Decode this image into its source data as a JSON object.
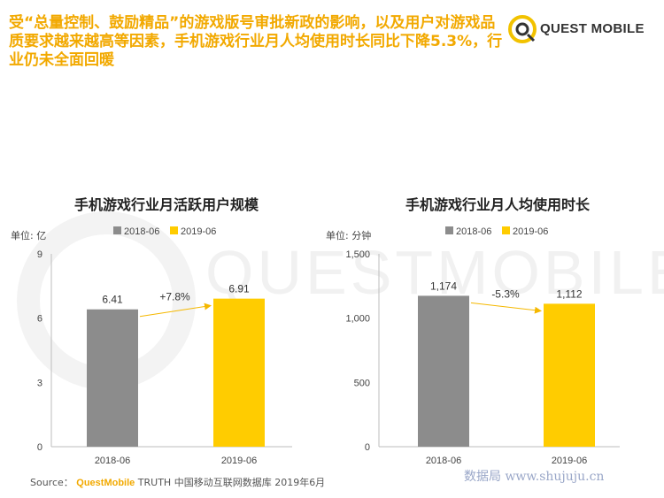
{
  "headline": "受“总量控制、鼓励精品”的游戏版号审批新政的影响，以及用户对游戏品质要求越来越高等因素，手机游戏行业月人均使用时长同比下降5.3%，行业仍未全面回暖",
  "logo": {
    "text": "QUEST MOBILE",
    "icon": "quest-mobile-logo-icon"
  },
  "watermark_text": "QUESTMOBILE",
  "colors": {
    "series_2018": "#8c8c8c",
    "series_2019": "#ffcc00",
    "accent": "#f2a900",
    "arrow": "#f5b800"
  },
  "chart_data": [
    {
      "type": "bar",
      "title": "手机游戏行业月活跃用户规模",
      "unit": "单位: 亿",
      "categories": [
        "2018-06",
        "2019-06"
      ],
      "values": [
        6.41,
        6.91
      ],
      "value_labels": [
        "6.41",
        "6.91"
      ],
      "change_label": "+7.8%",
      "ylim": [
        0,
        9
      ],
      "yticks": [
        0,
        3,
        6,
        9
      ],
      "ytick_labels": [
        "0",
        "3",
        "6",
        "9"
      ],
      "legend": [
        "2018-06",
        "2019-06"
      ],
      "legend_position": "top-center",
      "grid": false
    },
    {
      "type": "bar",
      "title": "手机游戏行业月人均使用时长",
      "unit": "单位: 分钟",
      "categories": [
        "2018-06",
        "2019-06"
      ],
      "values": [
        1174,
        1112
      ],
      "value_labels": [
        "1,174",
        "1,112"
      ],
      "change_label": "-5.3%",
      "ylim": [
        0,
        1500
      ],
      "yticks": [
        0,
        500,
        1000,
        1500
      ],
      "ytick_labels": [
        "0",
        "500",
        "1,000",
        "1,500"
      ],
      "legend": [
        "2018-06",
        "2019-06"
      ],
      "legend_position": "top-center",
      "grid": false
    }
  ],
  "source": {
    "label": "Source：",
    "brand": "QuestMobile",
    "text": "TRUTH 中国移动互联网数据库 2019年6月"
  },
  "site_mark": "数据局 www.shujuju.cn"
}
